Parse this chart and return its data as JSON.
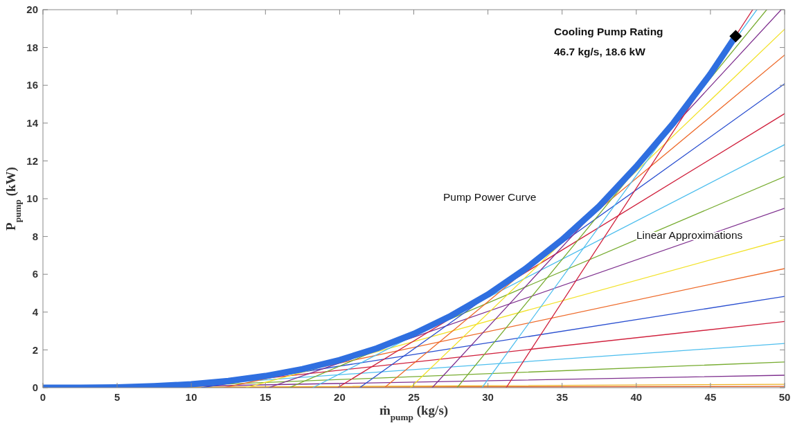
{
  "chart_data": {
    "type": "line",
    "xlabel": "ṁ$_{pump}$ (kg/s)",
    "ylabel": "P$_{pump}$ (kW)",
    "xlim": [
      0,
      50
    ],
    "ylim": [
      0,
      20
    ],
    "xticks": [
      0,
      5,
      10,
      15,
      20,
      25,
      30,
      35,
      40,
      45,
      50
    ],
    "yticks": [
      0,
      2,
      4,
      6,
      8,
      10,
      12,
      14,
      16,
      18,
      20
    ],
    "grid": false,
    "line_style": "solid",
    "annotations": [
      "Cooling Pump Rating",
      "46.7 kg/s, 18.6 kW",
      "Pump Power Curve",
      "Linear Approximations"
    ],
    "series": [
      {
        "color": "#d95319",
        "x": [
          1.5,
          50
        ],
        "values": [
          0,
          0.07
        ]
      },
      {
        "color": "#edb120",
        "x": [
          3.0,
          50
        ],
        "values": [
          0,
          0.18
        ]
      },
      {
        "color": "#7e2f8e",
        "x": [
          4.6,
          50
        ],
        "values": [
          0,
          0.66
        ]
      },
      {
        "color": "#77ac30",
        "x": [
          6.1,
          50
        ],
        "values": [
          0,
          1.36
        ]
      },
      {
        "color": "#4dbeee",
        "x": [
          7.6,
          50
        ],
        "values": [
          0,
          2.34
        ]
      },
      {
        "color": "#d0213d",
        "x": [
          9.2,
          50
        ],
        "values": [
          0,
          3.5
        ]
      },
      {
        "color": "#2a4fd0",
        "x": [
          10.7,
          50
        ],
        "values": [
          0,
          4.83
        ]
      },
      {
        "color": "#ee6a2a",
        "x": [
          12.2,
          50
        ],
        "values": [
          0,
          6.3
        ]
      },
      {
        "color": "#f2e22a",
        "x": [
          13.7,
          50
        ],
        "values": [
          0,
          7.84
        ]
      },
      {
        "color": "#7e2f8e",
        "x": [
          15.2,
          50
        ],
        "values": [
          0,
          9.49
        ]
      },
      {
        "color": "#77ac30",
        "x": [
          16.59,
          50
        ],
        "values": [
          0,
          11.17
        ]
      },
      {
        "color": "#4dbeee",
        "x": [
          18.19,
          50
        ],
        "values": [
          0,
          12.86
        ]
      },
      {
        "color": "#d0213d",
        "x": [
          19.86,
          50
        ],
        "values": [
          0,
          14.5
        ]
      },
      {
        "color": "#2a4fd0",
        "x": [
          21.35,
          50
        ],
        "values": [
          0,
          16.08
        ]
      },
      {
        "color": "#ee6a2a",
        "x": [
          23.02,
          50
        ],
        "values": [
          0,
          17.6
        ]
      },
      {
        "color": "#f2e22a",
        "x": [
          24.77,
          50
        ],
        "values": [
          0,
          18.97
        ]
      },
      {
        "color": "#7e2f8e",
        "x": [
          26.24,
          49.77
        ],
        "values": [
          0,
          20
        ]
      },
      {
        "color": "#77ac30",
        "x": [
          27.92,
          48.79
        ],
        "values": [
          0,
          20
        ]
      },
      {
        "color": "#4dbeee",
        "x": [
          29.6,
          48.13
        ],
        "values": [
          0,
          20
        ]
      },
      {
        "color": "#d0213d",
        "x": [
          31.23,
          47.85
        ],
        "values": [
          0,
          20
        ]
      },
      {
        "color": "#2f6fe0",
        "x": [
          0,
          2.5,
          5,
          7.5,
          10,
          12.5,
          15,
          17.5,
          20,
          22.5,
          25,
          27.5,
          30,
          32.5,
          35,
          37.5,
          40,
          42.5,
          45,
          46.7
        ],
        "values": [
          0,
          0,
          0.02,
          0.08,
          0.18,
          0.36,
          0.62,
          0.98,
          1.46,
          2.08,
          2.85,
          3.8,
          4.93,
          6.27,
          7.83,
          9.6,
          11.7,
          14.0,
          16.6,
          18.6
        ]
      },
      {
        "type": "scatter",
        "marker": "diamond",
        "color": "#000000",
        "x": [
          46.7
        ],
        "values": [
          18.6
        ]
      }
    ]
  }
}
